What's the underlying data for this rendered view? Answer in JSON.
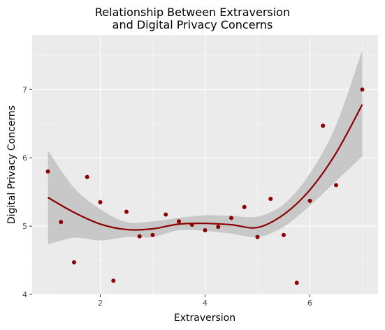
{
  "chart_data": {
    "type": "scatter",
    "title_line1": "Relationship Between Extraversion",
    "title_line2": "and Digital Privacy Concerns",
    "xlabel": "Extraversion",
    "ylabel": "Digital Privacy Concerns",
    "xlim": [
      0.7,
      7.3
    ],
    "ylim": [
      4.0,
      7.8
    ],
    "xticks": [
      2,
      4,
      6
    ],
    "yticks": [
      4,
      5,
      6,
      7
    ],
    "grid": true,
    "colors": {
      "points": "#8b0000",
      "line": "#8b0000",
      "ribbon": "#c8c8c8",
      "panel": "#ebebeb",
      "grid": "#ffffff"
    },
    "points": [
      {
        "x": 1.0,
        "y": 5.8
      },
      {
        "x": 1.25,
        "y": 5.06
      },
      {
        "x": 1.5,
        "y": 4.47
      },
      {
        "x": 1.75,
        "y": 5.72
      },
      {
        "x": 2.0,
        "y": 5.35
      },
      {
        "x": 2.25,
        "y": 4.2
      },
      {
        "x": 2.5,
        "y": 5.21
      },
      {
        "x": 2.75,
        "y": 4.85
      },
      {
        "x": 3.0,
        "y": 4.87
      },
      {
        "x": 3.25,
        "y": 5.17
      },
      {
        "x": 3.5,
        "y": 5.07
      },
      {
        "x": 3.75,
        "y": 5.02
      },
      {
        "x": 4.0,
        "y": 4.94
      },
      {
        "x": 4.25,
        "y": 4.99
      },
      {
        "x": 4.5,
        "y": 5.12
      },
      {
        "x": 4.75,
        "y": 5.28
      },
      {
        "x": 5.0,
        "y": 4.84
      },
      {
        "x": 5.25,
        "y": 5.4
      },
      {
        "x": 5.5,
        "y": 4.87
      },
      {
        "x": 5.75,
        "y": 4.17
      },
      {
        "x": 6.0,
        "y": 5.37
      },
      {
        "x": 6.25,
        "y": 6.47
      },
      {
        "x": 6.5,
        "y": 5.6
      },
      {
        "x": 7.0,
        "y": 7.0
      }
    ],
    "smooth": {
      "x": [
        1.0,
        1.5,
        2.0,
        2.5,
        3.0,
        3.5,
        4.0,
        4.5,
        5.0,
        5.5,
        6.0,
        6.5,
        7.0
      ],
      "y": [
        5.42,
        5.2,
        5.03,
        4.95,
        4.96,
        5.03,
        5.04,
        5.02,
        4.98,
        5.17,
        5.53,
        6.07,
        6.78
      ],
      "lower": [
        4.73,
        4.83,
        4.79,
        4.84,
        4.84,
        4.94,
        4.93,
        4.89,
        4.84,
        4.99,
        5.3,
        5.66,
        6.02
      ],
      "upper": [
        6.11,
        5.56,
        5.25,
        5.06,
        5.07,
        5.12,
        5.16,
        5.15,
        5.14,
        5.32,
        5.77,
        6.48,
        7.58
      ]
    }
  }
}
